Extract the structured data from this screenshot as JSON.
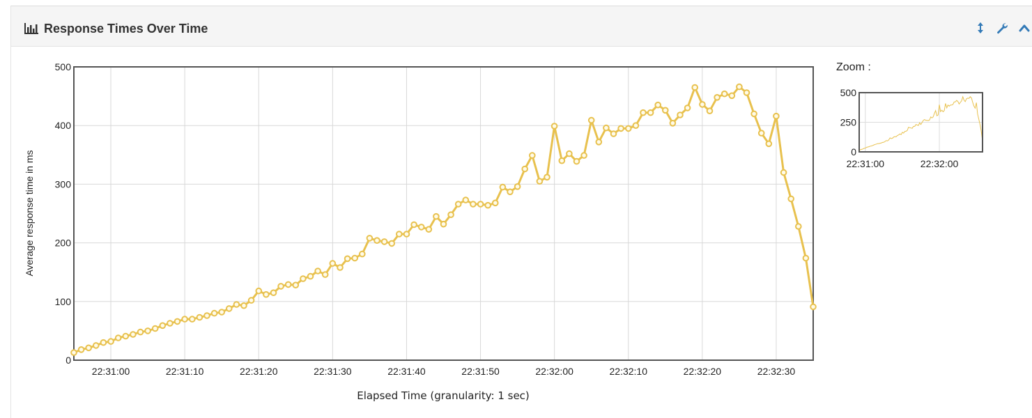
{
  "panel": {
    "title": "Response Times Over Time",
    "icons": {
      "title": "bar-chart-icon",
      "resize": "vertical-resize-icon",
      "settings": "wrench-icon",
      "collapse": "chevron-up-icon"
    },
    "accent_color": "#337ab7"
  },
  "zoom": {
    "label": "Zoom :"
  },
  "chart_data": [
    {
      "type": "line",
      "name": "main",
      "xlabel": "Elapsed Time (granularity: 1 sec)",
      "ylabel": "Average response time in ms",
      "ylim": [
        0,
        500
      ],
      "yticks": [
        0,
        100,
        200,
        300,
        400,
        500
      ],
      "xticks": [
        "22:31:00",
        "22:31:10",
        "22:31:20",
        "22:31:30",
        "22:31:40",
        "22:31:50",
        "22:32:00",
        "22:32:10",
        "22:32:20",
        "22:32:30"
      ],
      "x_start": "22:30:55",
      "x_end": "22:32:35",
      "grid": true,
      "color": "#e8c14e",
      "x": [
        "22:30:55",
        "22:30:56",
        "22:30:57",
        "22:30:58",
        "22:30:59",
        "22:31:00",
        "22:31:01",
        "22:31:02",
        "22:31:03",
        "22:31:04",
        "22:31:05",
        "22:31:06",
        "22:31:07",
        "22:31:08",
        "22:31:09",
        "22:31:10",
        "22:31:11",
        "22:31:12",
        "22:31:13",
        "22:31:14",
        "22:31:15",
        "22:31:16",
        "22:31:17",
        "22:31:18",
        "22:31:19",
        "22:31:20",
        "22:31:21",
        "22:31:22",
        "22:31:23",
        "22:31:24",
        "22:31:25",
        "22:31:26",
        "22:31:27",
        "22:31:28",
        "22:31:29",
        "22:31:30",
        "22:31:31",
        "22:31:32",
        "22:31:33",
        "22:31:34",
        "22:31:35",
        "22:31:36",
        "22:31:37",
        "22:31:38",
        "22:31:39",
        "22:31:40",
        "22:31:41",
        "22:31:42",
        "22:31:43",
        "22:31:44",
        "22:31:45",
        "22:31:46",
        "22:31:47",
        "22:31:48",
        "22:31:49",
        "22:31:50",
        "22:31:51",
        "22:31:52",
        "22:31:53",
        "22:31:54",
        "22:31:55",
        "22:31:56",
        "22:31:57",
        "22:31:58",
        "22:31:59",
        "22:32:00",
        "22:32:01",
        "22:32:02",
        "22:32:03",
        "22:32:04",
        "22:32:05",
        "22:32:06",
        "22:32:07",
        "22:32:08",
        "22:32:09",
        "22:32:10",
        "22:32:11",
        "22:32:12",
        "22:32:13",
        "22:32:14",
        "22:32:15",
        "22:32:16",
        "22:32:17",
        "22:32:18",
        "22:32:19",
        "22:32:20",
        "22:32:21",
        "22:32:22",
        "22:32:23",
        "22:32:24",
        "22:32:25",
        "22:32:26",
        "22:32:27",
        "22:32:28",
        "22:32:29",
        "22:32:30",
        "22:32:31",
        "22:32:32",
        "22:32:33",
        "22:32:34",
        "22:32:35"
      ],
      "y": [
        13,
        18,
        21,
        25,
        30,
        32,
        38,
        41,
        44,
        48,
        50,
        54,
        59,
        63,
        66,
        70,
        70,
        73,
        76,
        80,
        82,
        88,
        95,
        93,
        102,
        118,
        112,
        115,
        126,
        129,
        128,
        139,
        143,
        152,
        146,
        165,
        158,
        173,
        174,
        181,
        208,
        204,
        202,
        199,
        215,
        215,
        231,
        227,
        223,
        245,
        232,
        248,
        266,
        273,
        266,
        266,
        264,
        268,
        295,
        287,
        296,
        326,
        349,
        305,
        312,
        399,
        340,
        352,
        339,
        349,
        409,
        372,
        396,
        386,
        395,
        395,
        400,
        422,
        422,
        435,
        426,
        404,
        418,
        430,
        465,
        436,
        425,
        448,
        454,
        451,
        466,
        456,
        420,
        387,
        369,
        416,
        320,
        275,
        228,
        174,
        91
      ]
    },
    {
      "type": "line",
      "name": "zoom-overview",
      "ylim": [
        0,
        500
      ],
      "yticks": [
        0,
        250,
        500
      ],
      "xticks": [
        "22:31:00",
        "22:32:00"
      ],
      "x_start": "22:30:55",
      "x_end": "22:32:35",
      "color": "#e8c14e",
      "same_series_as": "main"
    }
  ]
}
